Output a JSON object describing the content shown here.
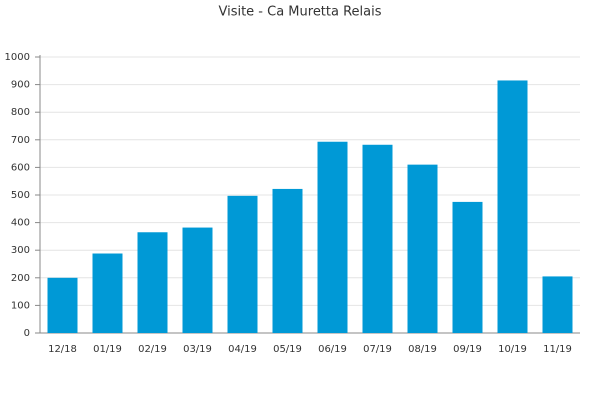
{
  "chart_data": {
    "type": "bar",
    "title": "Visite - Ca Muretta Relais",
    "categories": [
      "12/18",
      "01/19",
      "02/19",
      "03/19",
      "04/19",
      "05/19",
      "06/19",
      "07/19",
      "08/19",
      "09/19",
      "10/19",
      "11/19"
    ],
    "values": [
      200,
      288,
      365,
      382,
      497,
      522,
      693,
      682,
      610,
      475,
      915,
      205
    ],
    "color": "#0099d6",
    "ylim": [
      0,
      1000
    ],
    "yticks": [
      0,
      100,
      200,
      300,
      400,
      500,
      600,
      700,
      800,
      900,
      1000
    ],
    "grid": true
  }
}
